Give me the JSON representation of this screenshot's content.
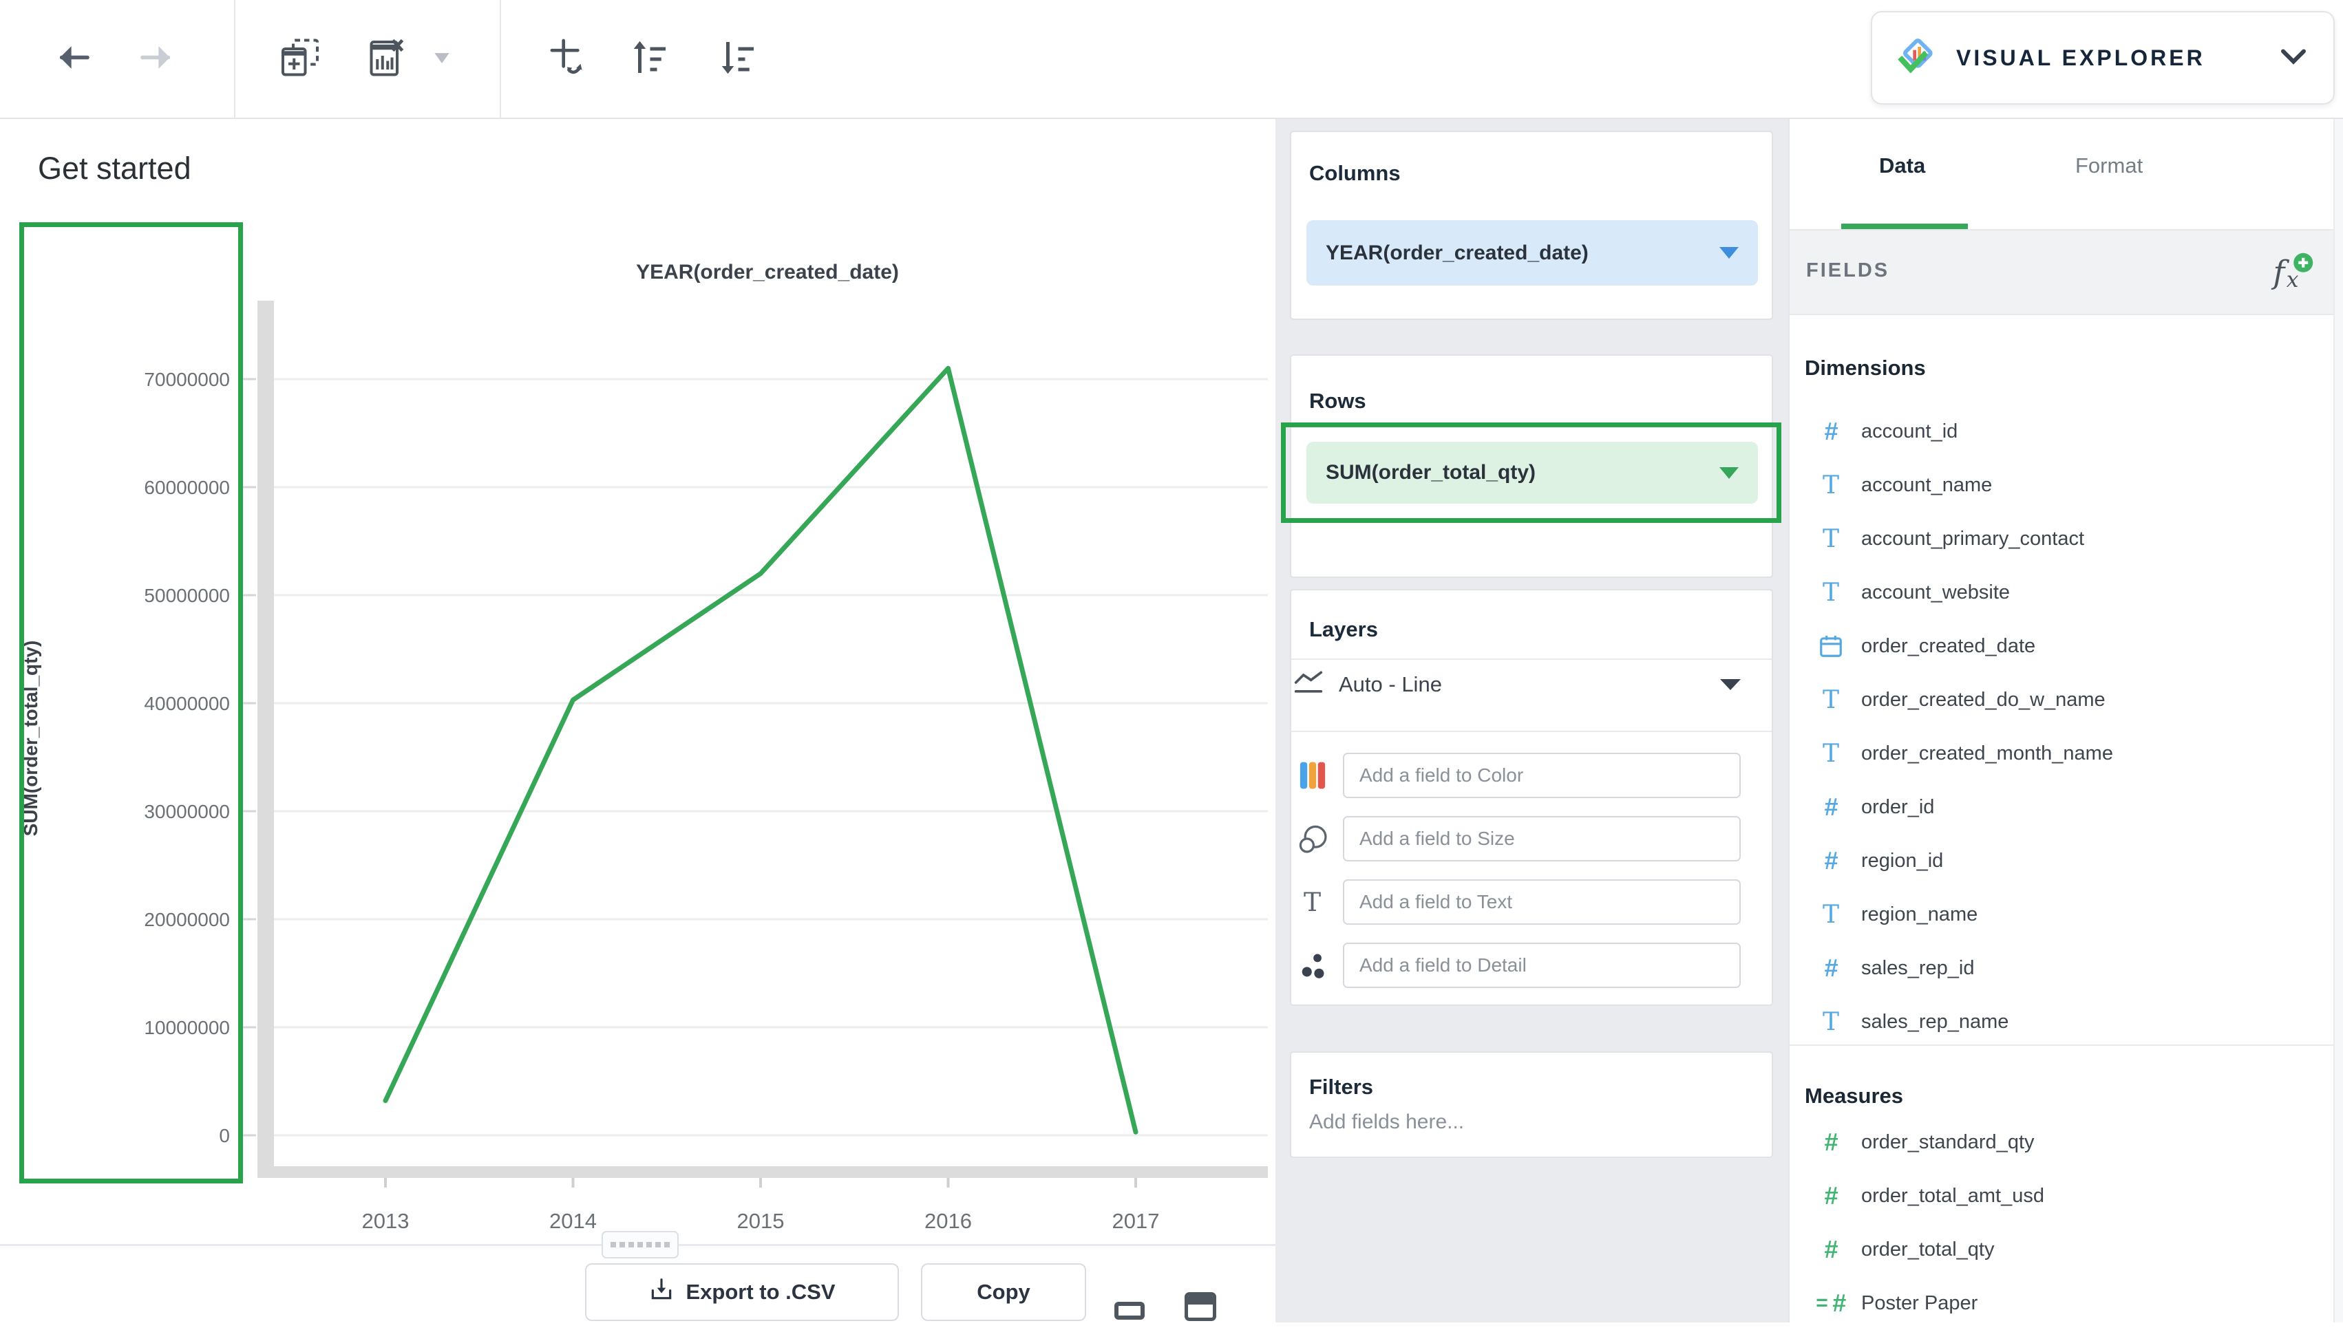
{
  "accent_green": "#28a24b",
  "toolbar": {
    "icons": [
      "back",
      "forward",
      "add-visual",
      "clear-visual",
      "visual-menu-caret",
      "swap-axes",
      "sort-ascending",
      "sort-descending"
    ]
  },
  "brand": {
    "label": "VISUAL EXPLORER"
  },
  "chart_panel": {
    "heading": "Get started",
    "export_label": "Export to .CSV",
    "copy_label": "Copy"
  },
  "chart_data": {
    "type": "line",
    "title": "YEAR(order_created_date)",
    "xlabel": "YEAR(order_created_date)",
    "ylabel": "SUM(order_total_qty)",
    "x": [
      2013,
      2014,
      2015,
      2016,
      2017
    ],
    "values": [
      3200000,
      40300000,
      52000000,
      71000000,
      300000
    ],
    "ylim": [
      0,
      75000000
    ],
    "ytick_step": 10000000,
    "ytick_labels": [
      "0",
      "10000000",
      "20000000",
      "30000000",
      "40000000",
      "50000000",
      "60000000",
      "70000000"
    ],
    "grid": "horizontal",
    "legend": "none",
    "line_color": "#35a757"
  },
  "shelves": {
    "columns": {
      "label": "Columns",
      "pill": "YEAR(order_created_date)",
      "pill_color": "#d8eafa"
    },
    "rows": {
      "label": "Rows",
      "pill": "SUM(order_total_qty)",
      "pill_color": "#def2e4"
    },
    "layers": {
      "label": "Layers",
      "mark_type": "Auto - Line",
      "targets": [
        {
          "icon": "color-icon",
          "placeholder": "Add a field to Color"
        },
        {
          "icon": "size-icon",
          "placeholder": "Add a field to Size"
        },
        {
          "icon": "text-icon",
          "placeholder": "Add a field to Text"
        },
        {
          "icon": "detail-icon",
          "placeholder": "Add a field to Detail"
        }
      ]
    },
    "filters": {
      "label": "Filters",
      "placeholder": "Add fields here..."
    }
  },
  "fields_panel": {
    "tabs": {
      "data": "Data",
      "format": "Format"
    },
    "active_tab": "Data",
    "section_label": "FIELDS",
    "dimensions": {
      "label": "Dimensions",
      "items": [
        {
          "name": "account_id",
          "type": "number"
        },
        {
          "name": "account_name",
          "type": "text"
        },
        {
          "name": "account_primary_contact",
          "type": "text"
        },
        {
          "name": "account_website",
          "type": "text"
        },
        {
          "name": "order_created_date",
          "type": "date"
        },
        {
          "name": "order_created_do_w_name",
          "type": "text"
        },
        {
          "name": "order_created_month_name",
          "type": "text"
        },
        {
          "name": "order_id",
          "type": "number"
        },
        {
          "name": "region_id",
          "type": "number"
        },
        {
          "name": "region_name",
          "type": "text"
        },
        {
          "name": "sales_rep_id",
          "type": "number"
        },
        {
          "name": "sales_rep_name",
          "type": "text"
        }
      ]
    },
    "measures": {
      "label": "Measures",
      "items": [
        {
          "name": "order_standard_qty",
          "type": "number"
        },
        {
          "name": "order_total_amt_usd",
          "type": "number"
        },
        {
          "name": "order_total_qty",
          "type": "number"
        },
        {
          "name": "Poster Paper",
          "type": "calculated"
        }
      ]
    }
  }
}
